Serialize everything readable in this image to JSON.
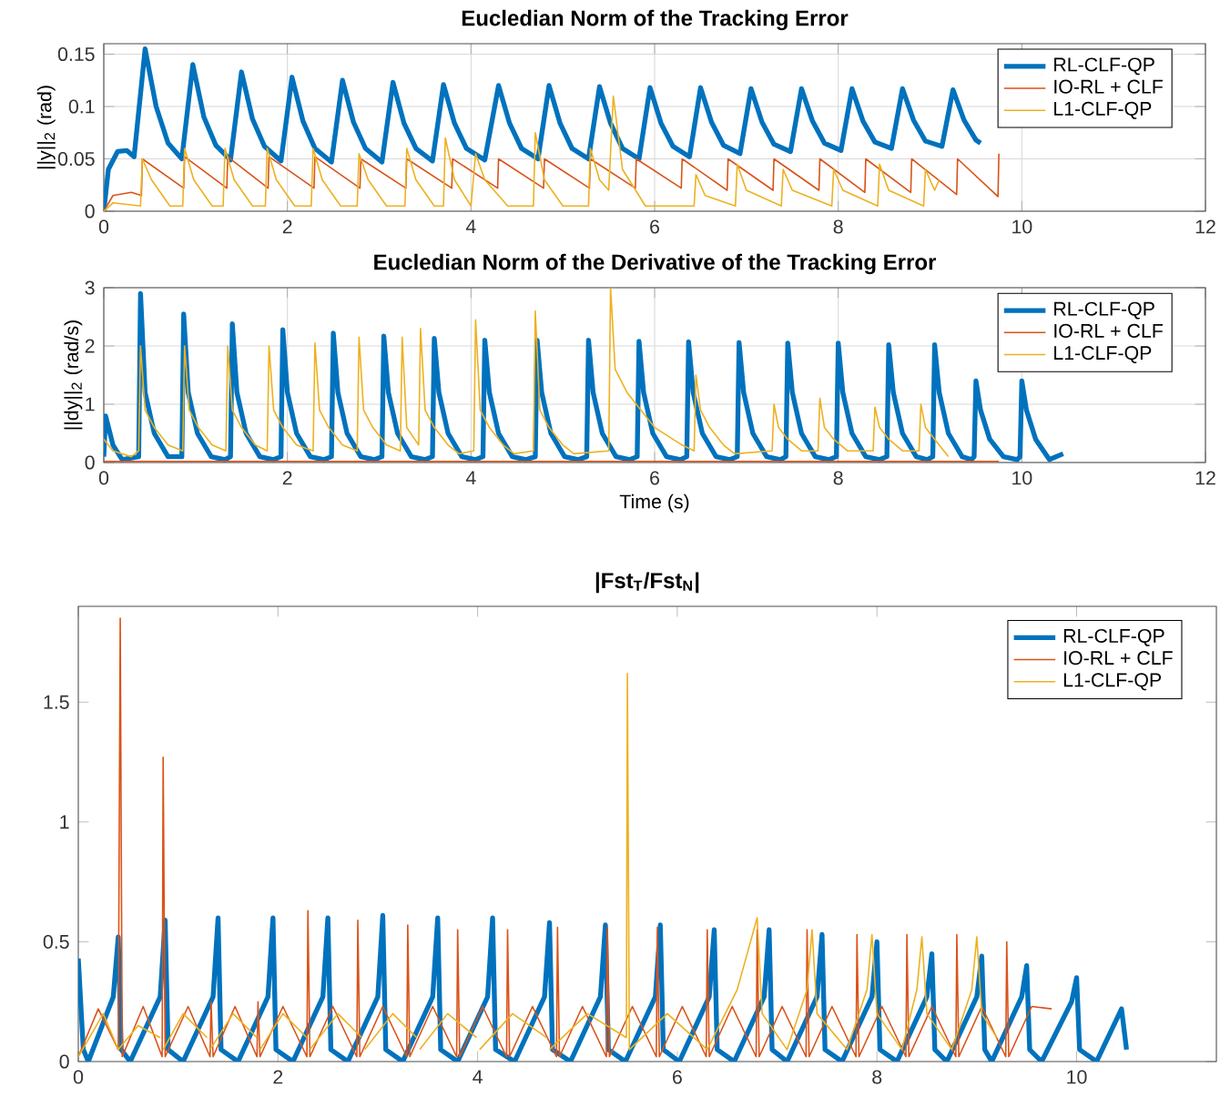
{
  "chart_data": [
    {
      "type": "line",
      "title": "Eucledian Norm of the Tracking Error",
      "ylabel": "||y||$_{2}$ (rad)",
      "xlim": [
        0,
        12
      ],
      "ylim": [
        0,
        0.16
      ],
      "xticks": [
        0,
        2,
        4,
        6,
        8,
        10,
        12
      ],
      "yticks": [
        0,
        0.05,
        0.1,
        0.15
      ],
      "grid": true,
      "legend": "top right",
      "series": [
        {
          "name": "RL-CLF-QP",
          "color": "#0072bd",
          "x": [
            0,
            0.05,
            0.15,
            0.25,
            0.33,
            0.45,
            0.57,
            0.7,
            0.85,
            0.97,
            1.09,
            1.22,
            1.38,
            1.5,
            1.62,
            1.75,
            1.93,
            2.05,
            2.17,
            2.3,
            2.48,
            2.6,
            2.72,
            2.85,
            3.03,
            3.15,
            3.27,
            3.4,
            3.58,
            3.7,
            3.82,
            3.95,
            4.15,
            4.3,
            4.42,
            4.55,
            4.73,
            4.85,
            4.97,
            5.1,
            5.28,
            5.4,
            5.52,
            5.65,
            5.83,
            5.95,
            6.07,
            6.2,
            6.38,
            6.5,
            6.62,
            6.75,
            6.93,
            7.05,
            7.17,
            7.3,
            7.48,
            7.6,
            7.72,
            7.85,
            8.03,
            8.15,
            8.27,
            8.4,
            8.58,
            8.7,
            8.82,
            8.95,
            9.13,
            9.25,
            9.37,
            9.5,
            9.55
          ],
          "values": [
            0,
            0.04,
            0.057,
            0.058,
            0.052,
            0.155,
            0.1,
            0.065,
            0.05,
            0.14,
            0.09,
            0.063,
            0.049,
            0.133,
            0.088,
            0.062,
            0.048,
            0.128,
            0.086,
            0.06,
            0.047,
            0.125,
            0.085,
            0.06,
            0.047,
            0.123,
            0.084,
            0.06,
            0.048,
            0.121,
            0.084,
            0.06,
            0.049,
            0.12,
            0.084,
            0.06,
            0.05,
            0.12,
            0.084,
            0.06,
            0.05,
            0.119,
            0.084,
            0.06,
            0.05,
            0.118,
            0.084,
            0.062,
            0.052,
            0.118,
            0.085,
            0.063,
            0.055,
            0.117,
            0.085,
            0.064,
            0.057,
            0.117,
            0.086,
            0.065,
            0.058,
            0.117,
            0.086,
            0.066,
            0.06,
            0.117,
            0.087,
            0.067,
            0.062,
            0.116,
            0.087,
            0.068,
            0.065
          ]
        },
        {
          "name": "IO-RL + CLF",
          "color": "#d95319",
          "x": [
            0,
            0.1,
            0.3,
            0.41,
            0.42,
            0.87,
            0.88,
            1.34,
            1.35,
            1.79,
            1.8,
            2.29,
            2.3,
            2.79,
            2.8,
            3.29,
            3.3,
            3.79,
            3.8,
            4.29,
            4.3,
            4.79,
            4.8,
            5.29,
            5.3,
            5.79,
            5.8,
            6.29,
            6.3,
            6.79,
            6.8,
            7.29,
            7.3,
            7.79,
            7.8,
            8.29,
            8.3,
            8.79,
            8.8,
            9.29,
            9.3,
            9.74,
            9.75
          ],
          "values": [
            0,
            0.015,
            0.018,
            0.015,
            0.05,
            0.022,
            0.052,
            0.022,
            0.052,
            0.022,
            0.052,
            0.022,
            0.052,
            0.022,
            0.05,
            0.022,
            0.05,
            0.022,
            0.05,
            0.022,
            0.05,
            0.022,
            0.05,
            0.022,
            0.05,
            0.022,
            0.05,
            0.022,
            0.05,
            0.02,
            0.05,
            0.02,
            0.05,
            0.02,
            0.05,
            0.018,
            0.05,
            0.018,
            0.05,
            0.016,
            0.05,
            0.014,
            0.055
          ]
        },
        {
          "name": "L1-CLF-QP",
          "color": "#edb120",
          "x": [
            0,
            0.1,
            0.4,
            0.42,
            0.52,
            0.72,
            0.86,
            0.88,
            0.98,
            1.18,
            1.3,
            1.32,
            1.42,
            1.62,
            1.76,
            1.78,
            1.88,
            2.08,
            2.26,
            2.28,
            2.38,
            2.58,
            2.76,
            2.78,
            2.88,
            3.08,
            3.28,
            3.3,
            3.4,
            3.6,
            3.7,
            3.72,
            3.82,
            4.0,
            4.05,
            4.15,
            4.4,
            4.68,
            4.7,
            4.8,
            5.0,
            5.28,
            5.3,
            5.4,
            5.5,
            5.55,
            5.65,
            5.9,
            6.43,
            6.45,
            6.55,
            6.88,
            6.9,
            7.0,
            7.38,
            7.4,
            7.5,
            7.93,
            7.95,
            8.05,
            8.43,
            8.45,
            8.55,
            8.93,
            8.95,
            9.05,
            9.1
          ],
          "values": [
            0,
            0.008,
            0.005,
            0.05,
            0.03,
            0.005,
            0.005,
            0.06,
            0.03,
            0.005,
            0.005,
            0.06,
            0.03,
            0.005,
            0.005,
            0.06,
            0.03,
            0.005,
            0.005,
            0.06,
            0.03,
            0.005,
            0.005,
            0.055,
            0.03,
            0.005,
            0.005,
            0.06,
            0.03,
            0.005,
            0.005,
            0.07,
            0.03,
            0.005,
            0.055,
            0.03,
            0.005,
            0.005,
            0.075,
            0.03,
            0.005,
            0.005,
            0.06,
            0.03,
            0.02,
            0.11,
            0.04,
            0.005,
            0.005,
            0.035,
            0.015,
            0.005,
            0.045,
            0.02,
            0.005,
            0.04,
            0.02,
            0.005,
            0.04,
            0.02,
            0.005,
            0.045,
            0.02,
            0.005,
            0.04,
            0.02,
            0.03
          ]
        }
      ]
    },
    {
      "type": "line",
      "title": "Eucledian Norm of the Derivative of the Tracking Error",
      "xlabel": "Time (s)",
      "ylabel": "||dy||$_{2}$ (rad/s)",
      "xlim": [
        0,
        12
      ],
      "ylim": [
        0,
        3
      ],
      "xticks": [
        0,
        2,
        4,
        6,
        8,
        10,
        12
      ],
      "yticks": [
        0,
        1,
        2,
        3
      ],
      "grid": true,
      "legend": "top right",
      "series": [
        {
          "name": "RL-CLF-QP",
          "color": "#0072bd",
          "x": [
            0,
            0.02,
            0.1,
            0.2,
            0.38,
            0.4,
            0.45,
            0.55,
            0.7,
            0.85,
            0.87,
            0.92,
            1.02,
            1.17,
            1.32,
            1.38,
            1.4,
            1.45,
            1.55,
            1.7,
            1.85,
            1.93,
            1.95,
            2.0,
            2.1,
            2.25,
            2.4,
            2.48,
            2.5,
            2.55,
            2.65,
            2.8,
            2.95,
            3.03,
            3.05,
            3.1,
            3.2,
            3.35,
            3.5,
            3.58,
            3.6,
            3.65,
            3.75,
            3.9,
            4.05,
            4.13,
            4.15,
            4.2,
            4.3,
            4.45,
            4.6,
            4.7,
            4.72,
            4.77,
            4.87,
            5.02,
            5.17,
            5.26,
            5.28,
            5.33,
            5.43,
            5.58,
            5.73,
            5.81,
            5.83,
            5.88,
            5.98,
            6.13,
            6.28,
            6.35,
            6.37,
            6.42,
            6.52,
            6.67,
            6.82,
            6.9,
            6.92,
            6.97,
            7.07,
            7.22,
            7.37,
            7.43,
            7.45,
            7.5,
            7.6,
            7.75,
            7.9,
            7.98,
            8.0,
            8.05,
            8.15,
            8.3,
            8.45,
            8.53,
            8.55,
            8.6,
            8.7,
            8.85,
            8.97,
            9.03,
            9.05,
            9.1,
            9.2,
            9.35,
            9.45,
            9.48,
            9.5,
            9.55,
            9.65,
            9.8,
            9.95,
            9.98,
            10.0,
            10.05,
            10.15,
            10.3,
            10.45
          ],
          "values": [
            0.1,
            0.8,
            0.3,
            0.05,
            0.1,
            2.9,
            1.2,
            0.5,
            0.1,
            0.1,
            2.55,
            1.2,
            0.5,
            0.1,
            0.05,
            0.1,
            2.38,
            1.2,
            0.5,
            0.1,
            0.05,
            0.1,
            2.28,
            1.2,
            0.5,
            0.1,
            0.05,
            0.1,
            2.22,
            1.2,
            0.5,
            0.1,
            0.05,
            0.1,
            2.17,
            1.2,
            0.5,
            0.1,
            0.05,
            0.1,
            2.13,
            1.2,
            0.5,
            0.1,
            0.05,
            0.1,
            2.1,
            1.2,
            0.5,
            0.1,
            0.05,
            0.1,
            2.1,
            1.2,
            0.5,
            0.1,
            0.05,
            0.1,
            2.1,
            1.2,
            0.5,
            0.1,
            0.05,
            0.1,
            2.08,
            1.2,
            0.5,
            0.1,
            0.05,
            0.1,
            2.07,
            1.2,
            0.5,
            0.1,
            0.05,
            0.1,
            2.06,
            1.2,
            0.5,
            0.1,
            0.05,
            0.1,
            2.05,
            1.2,
            0.5,
            0.1,
            0.05,
            0.1,
            2.05,
            1.2,
            0.5,
            0.1,
            0.05,
            0.1,
            2.02,
            1.2,
            0.5,
            0.1,
            0.05,
            0.1,
            2.02,
            1.2,
            0.5,
            0.1,
            0.05,
            0.1,
            1.4,
            0.9,
            0.4,
            0.1,
            0.05,
            0.1,
            1.4,
            0.9,
            0.4,
            0.05,
            0.15
          ]
        },
        {
          "name": "IO-RL + CLF",
          "color": "#d95319",
          "x": [
            0,
            2,
            4,
            6,
            8,
            9.75
          ],
          "values": [
            0.02,
            0.02,
            0.02,
            0.02,
            0.02,
            0.02
          ]
        },
        {
          "name": "L1-CLF-QP",
          "color": "#edb120",
          "x": [
            0,
            0.1,
            0.3,
            0.38,
            0.4,
            0.45,
            0.55,
            0.7,
            0.86,
            0.88,
            0.93,
            1.03,
            1.18,
            1.33,
            1.35,
            1.4,
            1.5,
            1.65,
            1.78,
            1.8,
            1.85,
            1.95,
            2.1,
            2.28,
            2.3,
            2.35,
            2.45,
            2.6,
            2.76,
            2.78,
            2.83,
            2.93,
            3.08,
            3.23,
            3.25,
            3.3,
            3.43,
            3.45,
            3.5,
            3.6,
            3.75,
            3.87,
            4.03,
            4.05,
            4.1,
            4.2,
            4.35,
            4.47,
            4.68,
            4.7,
            4.75,
            4.85,
            5.0,
            5.12,
            5.5,
            5.52,
            5.57,
            5.7,
            6.0,
            6.3,
            6.43,
            6.45,
            6.5,
            6.6,
            6.75,
            6.87,
            7.28,
            7.3,
            7.35,
            7.45,
            7.6,
            7.78,
            7.8,
            7.85,
            7.95,
            8.1,
            8.38,
            8.4,
            8.45,
            8.55,
            8.7,
            8.88,
            8.9,
            8.95,
            9.05,
            9.2
          ],
          "values": [
            0.4,
            0.2,
            0.1,
            0.2,
            2.0,
            0.9,
            0.6,
            0.3,
            0.2,
            2.0,
            0.9,
            0.6,
            0.3,
            0.2,
            2.0,
            0.9,
            0.6,
            0.3,
            0.2,
            2.0,
            0.9,
            0.6,
            0.3,
            0.2,
            2.05,
            0.9,
            0.6,
            0.3,
            0.2,
            2.15,
            0.9,
            0.6,
            0.3,
            0.2,
            2.15,
            0.6,
            0.3,
            2.3,
            0.9,
            0.6,
            0.3,
            0.15,
            0.2,
            2.45,
            0.9,
            0.6,
            0.3,
            0.15,
            0.2,
            2.6,
            0.9,
            0.6,
            0.3,
            0.15,
            0.2,
            3.0,
            1.6,
            1.2,
            0.6,
            0.3,
            0.2,
            1.5,
            0.9,
            0.6,
            0.3,
            0.15,
            0.2,
            1.0,
            0.6,
            0.4,
            0.2,
            0.2,
            1.1,
            0.6,
            0.4,
            0.2,
            0.2,
            0.95,
            0.6,
            0.4,
            0.2,
            0.2,
            1.0,
            0.6,
            0.4,
            0.1
          ]
        }
      ]
    },
    {
      "type": "line",
      "title": "|Fst$_{T}$/Fst$_{N}$|",
      "xlim": [
        0,
        11.4
      ],
      "ylim": [
        0,
        1.9
      ],
      "xticks": [
        0,
        2,
        4,
        6,
        8,
        10
      ],
      "yticks": [
        0,
        0.5,
        1,
        1.5
      ],
      "legend": "top right",
      "series": [
        {
          "name": "RL-CLF-QP",
          "color": "#0072bd",
          "x": [
            0,
            0.05,
            0.1,
            0.35,
            0.4,
            0.43,
            0.52,
            0.82,
            0.87,
            0.9,
            1.05,
            1.35,
            1.4,
            1.43,
            1.6,
            1.9,
            1.95,
            1.98,
            2.15,
            2.45,
            2.5,
            2.53,
            2.7,
            3.0,
            3.05,
            3.08,
            3.25,
            3.55,
            3.6,
            3.63,
            3.8,
            4.1,
            4.15,
            4.18,
            4.37,
            4.67,
            4.72,
            4.75,
            4.93,
            5.23,
            5.28,
            5.31,
            5.48,
            5.78,
            5.83,
            5.86,
            6.02,
            6.32,
            6.37,
            6.4,
            6.57,
            6.87,
            6.92,
            6.95,
            7.1,
            7.4,
            7.45,
            7.48,
            7.65,
            7.95,
            8.0,
            8.03,
            8.2,
            8.5,
            8.55,
            8.58,
            8.7,
            9.0,
            9.05,
            9.08,
            9.15,
            9.45,
            9.5,
            9.53,
            9.65,
            9.95,
            10.0,
            10.03,
            10.2,
            10.45,
            10.5
          ],
          "values": [
            0.43,
            0.05,
            0.0,
            0.27,
            0.52,
            0.05,
            0.0,
            0.27,
            0.59,
            0.05,
            0.0,
            0.27,
            0.6,
            0.05,
            0.0,
            0.27,
            0.6,
            0.05,
            0.0,
            0.27,
            0.6,
            0.05,
            0.0,
            0.27,
            0.61,
            0.05,
            0.0,
            0.27,
            0.6,
            0.05,
            0.0,
            0.27,
            0.6,
            0.05,
            0.0,
            0.27,
            0.58,
            0.05,
            0.0,
            0.27,
            0.57,
            0.05,
            0.0,
            0.27,
            0.57,
            0.05,
            0.0,
            0.27,
            0.55,
            0.05,
            0.0,
            0.27,
            0.55,
            0.05,
            0.0,
            0.27,
            0.53,
            0.05,
            0.0,
            0.27,
            0.5,
            0.05,
            0.0,
            0.27,
            0.45,
            0.05,
            0.0,
            0.27,
            0.44,
            0.05,
            0.0,
            0.27,
            0.4,
            0.05,
            0.0,
            0.25,
            0.35,
            0.05,
            0.0,
            0.22,
            0.05
          ]
        },
        {
          "name": "IO-RL + CLF",
          "color": "#d95319",
          "x": [
            0,
            0.2,
            0.4,
            0.42,
            0.44,
            0.65,
            0.84,
            0.85,
            0.87,
            1.1,
            1.32,
            1.33,
            1.35,
            1.57,
            1.79,
            1.8,
            1.82,
            2.05,
            2.29,
            2.3,
            2.32,
            2.55,
            2.79,
            2.8,
            2.82,
            3.05,
            3.29,
            3.3,
            3.32,
            3.55,
            3.79,
            3.8,
            3.82,
            4.05,
            4.29,
            4.3,
            4.32,
            4.55,
            4.79,
            4.8,
            4.82,
            5.05,
            5.29,
            5.3,
            5.32,
            5.55,
            5.79,
            5.8,
            5.82,
            6.05,
            6.29,
            6.3,
            6.32,
            6.55,
            6.79,
            6.8,
            6.82,
            7.05,
            7.29,
            7.3,
            7.32,
            7.55,
            7.79,
            7.8,
            7.82,
            8.05,
            8.29,
            8.3,
            8.32,
            8.55,
            8.79,
            8.8,
            8.82,
            9.05,
            9.29,
            9.3,
            9.32,
            9.55,
            9.75
          ],
          "values": [
            0.02,
            0.22,
            0.05,
            1.85,
            0.02,
            0.23,
            0.02,
            1.27,
            0.02,
            0.23,
            0.02,
            0.25,
            0.02,
            0.23,
            0.02,
            0.25,
            0.02,
            0.23,
            0.02,
            0.63,
            0.02,
            0.23,
            0.02,
            0.59,
            0.02,
            0.23,
            0.02,
            0.57,
            0.02,
            0.23,
            0.02,
            0.55,
            0.02,
            0.23,
            0.02,
            0.55,
            0.02,
            0.23,
            0.02,
            0.56,
            0.02,
            0.23,
            0.02,
            0.56,
            0.02,
            0.23,
            0.02,
            0.56,
            0.02,
            0.23,
            0.02,
            0.55,
            0.02,
            0.23,
            0.02,
            0.55,
            0.02,
            0.23,
            0.02,
            0.55,
            0.02,
            0.23,
            0.02,
            0.53,
            0.02,
            0.23,
            0.02,
            0.53,
            0.02,
            0.23,
            0.02,
            0.53,
            0.02,
            0.23,
            0.02,
            0.5,
            0.02,
            0.23,
            0.22
          ]
        },
        {
          "name": "L1-CLF-QP",
          "color": "#edb120",
          "x": [
            0,
            0.25,
            0.4,
            0.6,
            0.82,
            0.83,
            0.85,
            1.05,
            1.29,
            1.3,
            1.32,
            1.55,
            1.79,
            1.8,
            1.82,
            2.05,
            2.29,
            2.3,
            2.32,
            2.6,
            2.84,
            2.85,
            2.87,
            3.15,
            3.39,
            3.4,
            3.42,
            3.7,
            3.99,
            4.0,
            4.02,
            4.35,
            4.69,
            4.7,
            4.72,
            5.1,
            5.49,
            5.5,
            5.52,
            5.9,
            6.3,
            6.6,
            6.7,
            6.8,
            6.85,
            7.1,
            7.3,
            7.35,
            7.4,
            7.7,
            7.9,
            7.95,
            8.0,
            8.25,
            8.4,
            8.45,
            8.5,
            8.75,
            8.95,
            9.0,
            9.05,
            9.2
          ],
          "values": [
            0.02,
            0.2,
            0.05,
            0.15,
            0.1,
            null,
            0.05,
            0.2,
            0.1,
            null,
            0.05,
            0.2,
            0.1,
            null,
            0.05,
            0.2,
            0.1,
            null,
            0.05,
            0.2,
            0.1,
            null,
            0.05,
            0.2,
            0.1,
            null,
            0.05,
            0.2,
            0.1,
            null,
            0.05,
            0.2,
            0.1,
            null,
            0.05,
            0.2,
            0.1,
            1.62,
            0.05,
            0.2,
            0.05,
            0.3,
            0.45,
            0.6,
            0.2,
            0.05,
            0.3,
            0.55,
            0.2,
            0.05,
            0.3,
            0.53,
            0.2,
            0.05,
            0.3,
            0.52,
            0.2,
            0.05,
            0.3,
            0.52,
            0.2,
            0.1
          ]
        }
      ]
    }
  ]
}
